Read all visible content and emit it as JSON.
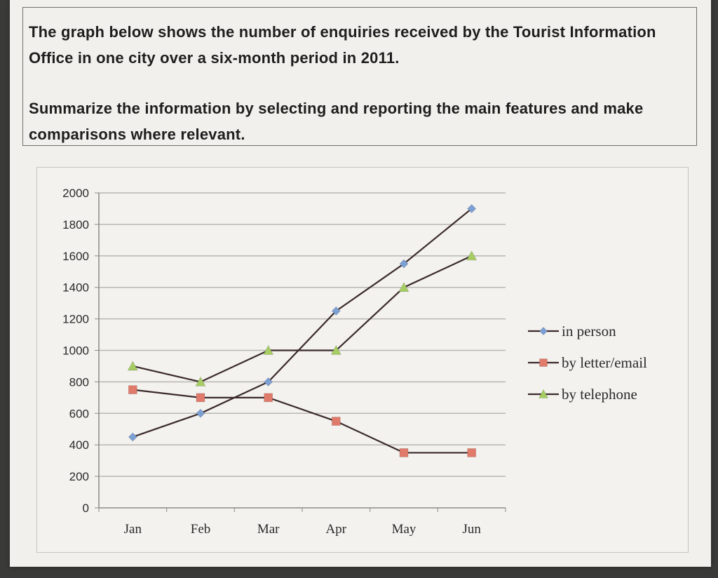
{
  "prompt": {
    "line1": "The graph below shows the number of enquiries received by the Tourist Information Office in one city over a six-month period in 2011.",
    "line2": "Summarize the information by selecting and reporting the main features and make comparisons where relevant."
  },
  "chart_data": {
    "type": "line",
    "categories": [
      "Jan",
      "Feb",
      "Mar",
      "Apr",
      "May",
      "Jun"
    ],
    "series": [
      {
        "name": "in person",
        "marker": "diamond",
        "marker_color": "#7c9fd4",
        "values": [
          450,
          600,
          800,
          1250,
          1550,
          1900
        ]
      },
      {
        "name": "by letter/email",
        "marker": "square",
        "marker_color": "#e07a6a",
        "values": [
          750,
          700,
          700,
          550,
          350,
          350
        ]
      },
      {
        "name": "by telephone",
        "marker": "triangle",
        "marker_color": "#a6cc63",
        "values": [
          900,
          800,
          1000,
          1000,
          1400,
          1600
        ]
      }
    ],
    "line_color": "#3b2a2c",
    "yticks": [
      0,
      200,
      400,
      600,
      800,
      1000,
      1200,
      1400,
      1600,
      1800,
      2000
    ],
    "ylim": [
      0,
      2000
    ],
    "grid": true,
    "legend_position": "right"
  }
}
